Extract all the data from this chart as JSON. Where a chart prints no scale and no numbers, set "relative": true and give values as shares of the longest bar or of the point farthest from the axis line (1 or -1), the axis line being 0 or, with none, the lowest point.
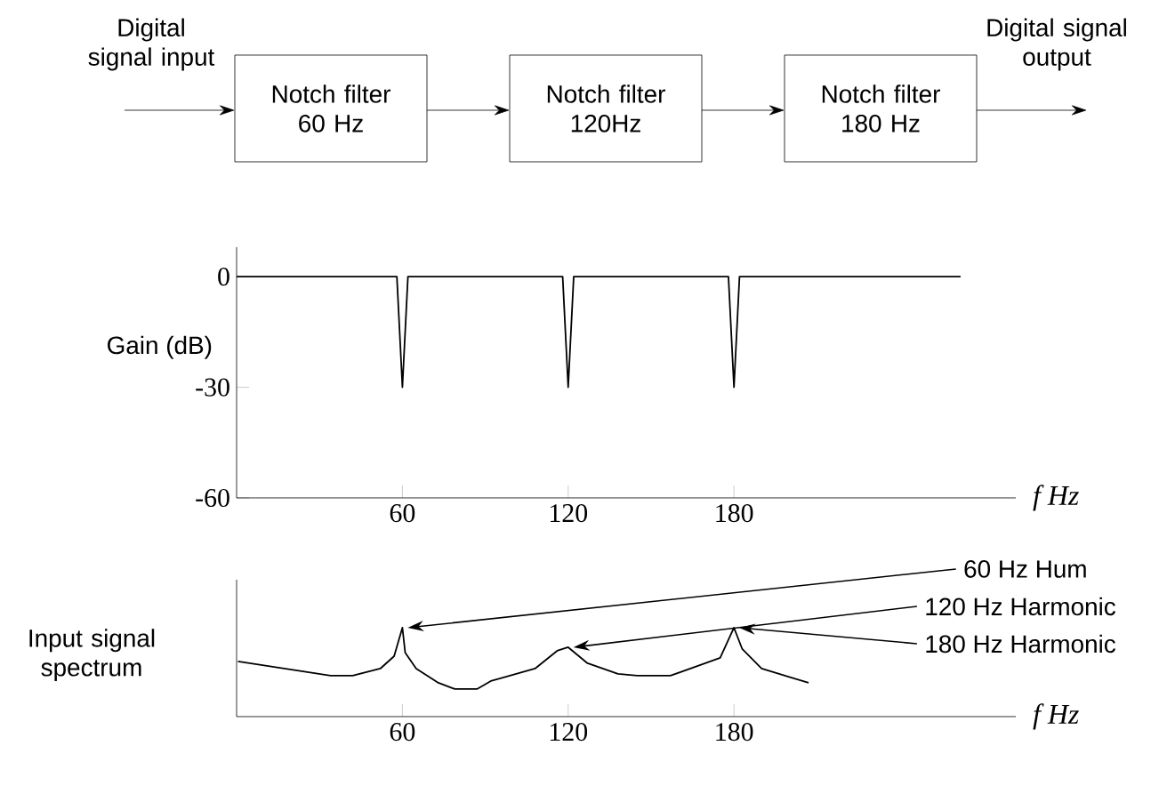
{
  "chart_data": [
    {
      "type": "other",
      "annotations": [
        "Digital signal input",
        "Notch filter 60 Hz",
        "Notch filter 120Hz",
        "Notch filter 180 Hz",
        "Digital signal output"
      ]
    },
    {
      "type": "line",
      "ylabel": "Gain (dB)",
      "xlabel": "f  Hz",
      "color": "#000000",
      "line_style": "solid",
      "xlim": [
        0,
        282
      ],
      "ylim": [
        -60,
        8
      ],
      "xticks": [
        60,
        120,
        180
      ],
      "yticks": [
        -60,
        -30,
        0
      ],
      "x": [
        0,
        58,
        60,
        62,
        118,
        120,
        122,
        178,
        180,
        182,
        262
      ],
      "values": [
        0,
        0,
        -30,
        0,
        0,
        -30,
        0,
        0,
        -30,
        0,
        0
      ]
    },
    {
      "type": "line",
      "relative": true,
      "ylabel": "Input signal spectrum",
      "xlabel": "f  Hz",
      "color": "#000000",
      "line_style": "solid",
      "xlim": [
        0,
        282
      ],
      "xticks": [
        60,
        120,
        180
      ],
      "x": [
        0.5,
        34,
        42,
        52,
        57,
        60,
        61,
        65,
        73,
        79,
        87,
        92,
        108,
        116,
        120,
        127,
        138,
        145,
        157,
        175,
        180,
        183,
        190,
        207
      ],
      "values": [
        0.62,
        0.46,
        0.46,
        0.54,
        0.68,
        1,
        0.72,
        0.54,
        0.38,
        0.31,
        0.31,
        0.4,
        0.54,
        0.74,
        0.78,
        0.6,
        0.48,
        0.46,
        0.46,
        0.66,
        1,
        0.76,
        0.54,
        0.38
      ],
      "annotations": [
        {
          "text": "60 Hz Hum",
          "x": 60,
          "y": 1
        },
        {
          "text": "120 Hz Harmonic",
          "x": 120,
          "y": 0.78
        },
        {
          "text": "180 Hz Harmonic",
          "x": 180,
          "y": 1
        }
      ]
    }
  ]
}
